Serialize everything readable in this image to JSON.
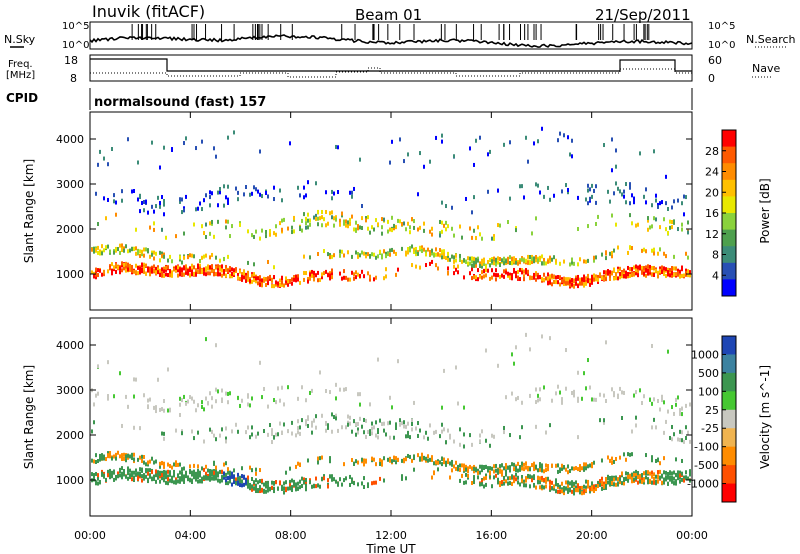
{
  "header": {
    "station": "Inuvik (fitACF)",
    "beam": "Beam 01",
    "date": "21/Sep/2011"
  },
  "side_labels": {
    "nsky": "N.Sky",
    "nsearch": "N.Search",
    "freq_line1": "Freq.",
    "freq_line2": "[MHz]",
    "nave": "Nave",
    "cpid": "CPID",
    "cpid_value": "normalsound (fast) 157"
  },
  "noise_axis": {
    "left_ticks": [
      "10^5",
      "10^0"
    ],
    "right_ticks": [
      "10^5",
      "10^0"
    ]
  },
  "freq_axis": {
    "left_ticks": [
      "18",
      "8"
    ],
    "right_ticks": [
      "60",
      "0"
    ]
  },
  "chart_data": [
    {
      "type": "heatmap",
      "title": "",
      "ylabel": "Slant Range [km]",
      "xlabel": "",
      "x_ticks": [
        "00:00",
        "04:00",
        "08:00",
        "12:00",
        "16:00",
        "20:00",
        "00:00"
      ],
      "y_ticks": [
        1000,
        2000,
        3000,
        4000
      ],
      "ylim": [
        200,
        4600
      ],
      "colorbar": {
        "label": "Power [dB]",
        "ticks": [
          "28",
          "24",
          "20",
          "16",
          "12",
          "8",
          "4"
        ],
        "colors": [
          "#ff0000",
          "#ff5a00",
          "#ff8c00",
          "#ffc000",
          "#e8e800",
          "#8ad23c",
          "#4ea04e",
          "#3c8c78",
          "#2850b4",
          "#0000ff"
        ]
      }
    },
    {
      "type": "heatmap",
      "title": "",
      "ylabel": "Slant Range [km]",
      "xlabel": "Time UT",
      "x_ticks": [
        "00:00",
        "04:00",
        "08:00",
        "12:00",
        "16:00",
        "20:00",
        "00:00"
      ],
      "y_ticks": [
        1000,
        2000,
        3000,
        4000
      ],
      "ylim": [
        200,
        4600
      ],
      "colorbar": {
        "label": "Velocity [m s^-1]",
        "ticks": [
          "1000",
          "500",
          "100",
          "25",
          "-25",
          "-100",
          "-500",
          "-1000"
        ],
        "colors": [
          "#1e46b4",
          "#3c82a0",
          "#3c9650",
          "#46c832",
          "#c8c8c0",
          "#f0b450",
          "#ff8c00",
          "#ff5000",
          "#ff0000"
        ]
      }
    }
  ]
}
